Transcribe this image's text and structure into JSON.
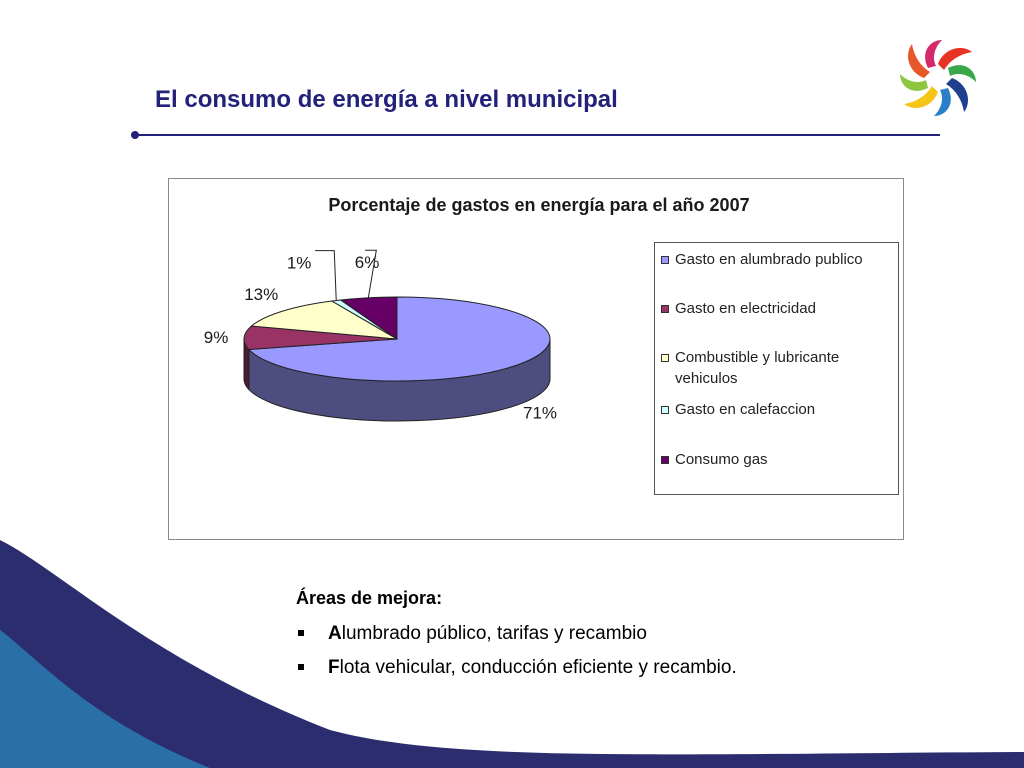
{
  "slide": {
    "title": "El consumo de energía a nivel municipal"
  },
  "chart_data": {
    "type": "pie",
    "title": "Porcentaje de gastos en energía para el año 2007",
    "categories": [
      "Gasto en alumbrado publico",
      "Gasto en electricidad",
      "Combustible y lubricante vehiculos",
      "Gasto en calefaccion",
      "Consumo gas"
    ],
    "values": [
      71,
      9,
      13,
      1,
      6
    ],
    "value_labels": [
      "71%",
      "9%",
      "13%",
      "1%",
      "6%"
    ],
    "colors": [
      "#9999ff",
      "#993366",
      "#ffffcc",
      "#ccffff",
      "#660066"
    ],
    "side_colors": [
      "#4d4d80",
      "#4d1a33",
      "#80806a",
      "#6a8080",
      "#330033"
    ],
    "legend_position": "right",
    "three_d": true
  },
  "areas": {
    "heading": "Áreas de mejora:",
    "items": [
      {
        "first_letter": "A",
        "rest": "lumbrado público, tarifas y recambio"
      },
      {
        "first_letter": "F",
        "rest": "lota vehicular, conducción eficiente y recambio."
      }
    ]
  }
}
